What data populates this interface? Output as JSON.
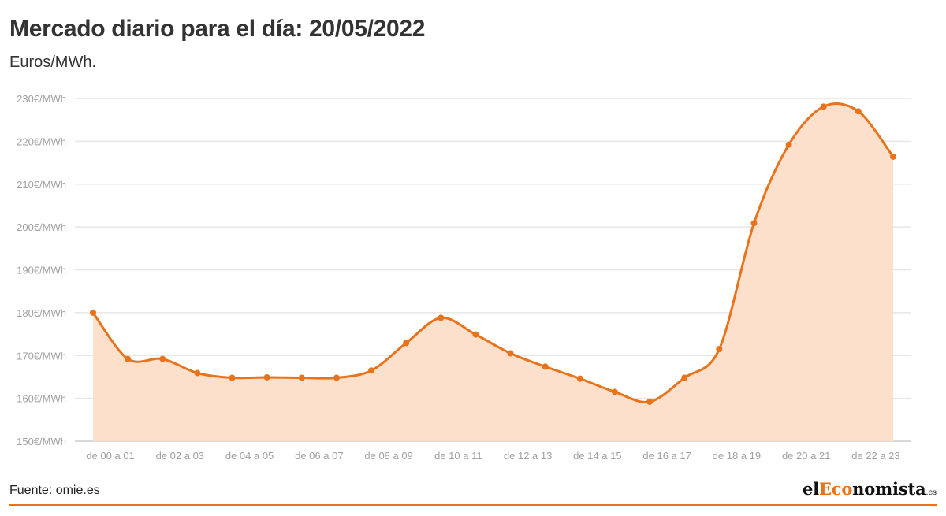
{
  "title": "Mercado diario para el día: 20/05/2022",
  "subtitle": "Euros/MWh.",
  "source": "Fuente: omie.es",
  "logo": {
    "prefix": "el",
    "accent": "Eco",
    "rest": "nomista",
    "tld": ".es"
  },
  "colors": {
    "line": "#e8731a",
    "area": "#fde0cc",
    "grid": "#e6e6e6",
    "tick": "#a0a0a0"
  },
  "chart_data": {
    "type": "area",
    "y_unit_suffix": "€/MWh",
    "ylim": [
      150,
      230
    ],
    "yticks": [
      150,
      160,
      170,
      180,
      190,
      200,
      210,
      220,
      230
    ],
    "grid": true,
    "x_tick_labels": [
      "de 00 a 01",
      "de 02 a 03",
      "de 04 a 05",
      "de 06 a 07",
      "de 08 a 09",
      "de 10 a 11",
      "de 12 a 13",
      "de 14 a 15",
      "de 16 a 17",
      "de 18 a 19",
      "de 20 a 21",
      "de 22 a 23"
    ],
    "values": [
      180.0,
      169.2,
      169.2,
      165.9,
      164.8,
      164.9,
      164.8,
      164.8,
      166.5,
      172.9,
      178.8,
      174.9,
      170.5,
      167.4,
      164.6,
      161.5,
      159.2,
      164.8,
      171.5,
      200.9,
      219.2,
      228.1,
      227.0,
      216.4
    ]
  }
}
